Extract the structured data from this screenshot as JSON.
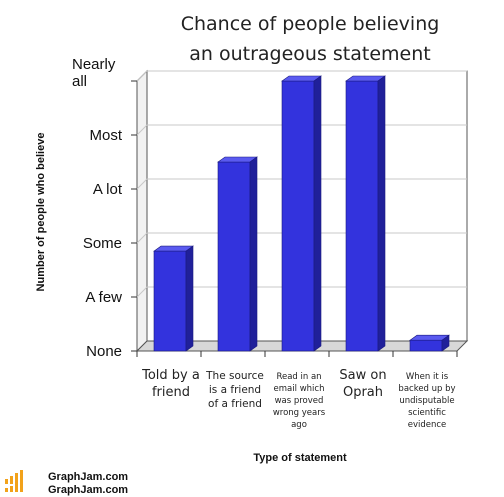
{
  "chart_data": {
    "type": "bar",
    "title": [
      "Chance of people believing",
      "an outrageous statement"
    ],
    "xlabel": "Type of statement",
    "ylabel": "Number of people who believe",
    "y_ticks": [
      "None",
      "A few",
      "Some",
      "A lot",
      "Most",
      "Nearly all"
    ],
    "ylim": [
      0,
      5
    ],
    "grid": true,
    "categories": [
      [
        "Told by a",
        "friend"
      ],
      [
        "The source",
        "is a friend",
        "of a friend"
      ],
      [
        "Read in an",
        "email which",
        "was proved",
        "wrong years",
        "ago"
      ],
      [
        "Saw on",
        "Oprah"
      ],
      [
        "When it is",
        "backed up by",
        "undisputable",
        "scientific",
        "evidence"
      ]
    ],
    "values": [
      1.85,
      3.5,
      5.0,
      5.0,
      0.2
    ],
    "bar_color": "#3333dd"
  },
  "watermark": {
    "line1": "GraphJam.com",
    "line2": "GraphJam.com"
  }
}
